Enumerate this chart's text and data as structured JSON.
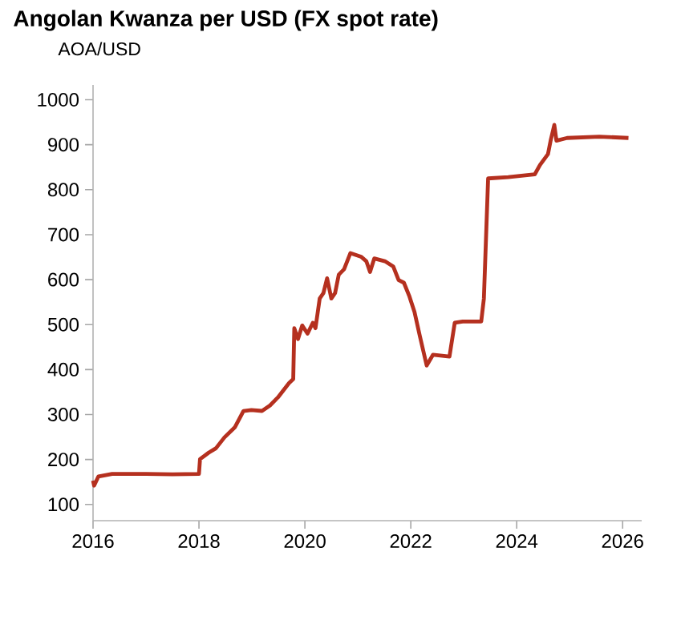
{
  "chart_data": {
    "type": "line",
    "title": "Angolan Kwanza per USD (FX spot rate)",
    "ylabel": "AOA/USD",
    "color": "#b5301f",
    "x": [
      2016.0,
      2016.02,
      2016.1,
      2016.36,
      2017.0,
      2017.5,
      2018.0,
      2018.02,
      2018.18,
      2018.32,
      2018.48,
      2018.68,
      2018.84,
      2018.99,
      2019.19,
      2019.34,
      2019.49,
      2019.7,
      2019.78,
      2019.8,
      2019.87,
      2019.95,
      2020.05,
      2020.15,
      2020.2,
      2020.28,
      2020.35,
      2020.42,
      2020.5,
      2020.57,
      2020.64,
      2020.74,
      2020.86,
      2021.06,
      2021.16,
      2021.23,
      2021.31,
      2021.51,
      2021.67,
      2021.77,
      2021.87,
      2021.97,
      2022.07,
      2022.17,
      2022.3,
      2022.42,
      2022.73,
      2022.83,
      2022.98,
      2023.33,
      2023.38,
      2023.46,
      2023.84,
      2024.34,
      2024.44,
      2024.59,
      2024.64,
      2024.71,
      2024.75,
      2024.95,
      2025.56,
      2026.11
    ],
    "values": [
      153,
      142,
      162,
      168,
      168,
      167,
      168,
      201,
      215,
      225,
      249,
      272,
      308,
      310,
      308,
      320,
      338,
      370,
      379,
      492,
      468,
      498,
      480,
      504,
      492,
      558,
      570,
      603,
      558,
      570,
      611,
      623,
      659,
      651,
      641,
      617,
      647,
      641,
      629,
      599,
      593,
      564,
      528,
      475,
      409,
      433,
      429,
      504,
      507,
      507,
      558,
      825,
      828,
      834,
      855,
      879,
      909,
      944,
      909,
      915,
      918,
      915
    ],
    "xlim": [
      2016,
      2026.36
    ],
    "ylim": [
      64,
      1033
    ],
    "xticks": [
      2016,
      2018,
      2020,
      2022,
      2024,
      2026
    ],
    "yticks": [
      100,
      200,
      300,
      400,
      500,
      600,
      700,
      800,
      900,
      1000
    ],
    "line_style": "solid"
  }
}
